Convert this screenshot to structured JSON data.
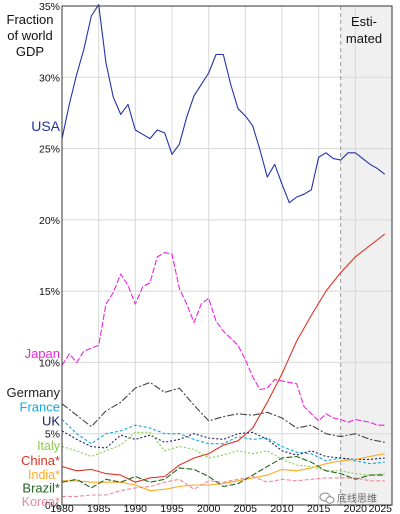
{
  "chart_data": {
    "type": "line",
    "title": "",
    "ylabel_lines": [
      "Fraction",
      "of world",
      "GDP"
    ],
    "ylim": [
      0,
      35
    ],
    "xlim": [
      1980,
      2025
    ],
    "x_ticks": [
      1980,
      1985,
      1990,
      1995,
      2000,
      2005,
      2010,
      2015,
      2020,
      2025
    ],
    "y_ticks": [
      0,
      5,
      10,
      15,
      20,
      25,
      30,
      35
    ],
    "y_tick_suffix": "%",
    "grid": true,
    "estimated_from": 2018,
    "estimated_label_lines": [
      "Esti-",
      "mated"
    ],
    "series": [
      {
        "name": "USA",
        "color": "#2233aa",
        "dash": "",
        "x": [
          1980,
          1981,
          1982,
          1983,
          1984,
          1985,
          1986,
          1987,
          1988,
          1989,
          1990,
          1991,
          1992,
          1993,
          1994,
          1995,
          1996,
          1997,
          1998,
          1999,
          2000,
          2001,
          2002,
          2003,
          2004,
          2005,
          2006,
          2007,
          2008,
          2009,
          2010,
          2011,
          2012,
          2013,
          2014,
          2015,
          2016,
          2017,
          2018,
          2019,
          2020,
          2021,
          2022,
          2023,
          2024
        ],
        "values": [
          25.7,
          28.1,
          30.2,
          32.0,
          34.3,
          35.1,
          31.0,
          28.6,
          27.4,
          28.1,
          26.3,
          26.0,
          25.7,
          26.3,
          26.1,
          24.6,
          25.3,
          27.2,
          28.7,
          29.5,
          30.3,
          31.6,
          31.6,
          29.5,
          27.8,
          27.3,
          26.6,
          24.9,
          23.0,
          23.9,
          22.5,
          21.2,
          21.6,
          21.8,
          22.1,
          24.4,
          24.7,
          24.3,
          24.2,
          24.7,
          24.7,
          24.3,
          23.9,
          23.6,
          23.2
        ]
      },
      {
        "name": "China*",
        "color": "#dd3322",
        "dash": "",
        "x": [
          1980,
          1982,
          1984,
          1986,
          1988,
          1990,
          1992,
          1994,
          1996,
          1998,
          2000,
          2002,
          2004,
          2006,
          2008,
          2010,
          2012,
          2014,
          2016,
          2018,
          2020,
          2022,
          2024
        ],
        "values": [
          2.7,
          2.4,
          2.5,
          2.2,
          2.1,
          1.6,
          1.9,
          2.0,
          2.8,
          3.3,
          3.6,
          4.2,
          4.5,
          5.4,
          7.2,
          9.2,
          11.5,
          13.3,
          15.0,
          16.3,
          17.4,
          18.2,
          19.0
        ]
      },
      {
        "name": "Japan",
        "color": "#ee22dd",
        "dash": "6,2",
        "x": [
          1980,
          1981,
          1982,
          1983,
          1984,
          1985,
          1986,
          1987,
          1988,
          1989,
          1990,
          1991,
          1992,
          1993,
          1994,
          1995,
          1996,
          1997,
          1998,
          1999,
          2000,
          2001,
          2002,
          2003,
          2004,
          2005,
          2006,
          2007,
          2008,
          2009,
          2010,
          2011,
          2012,
          2013,
          2014,
          2015,
          2016,
          2017,
          2018,
          2019,
          2020,
          2021,
          2022,
          2023,
          2024
        ],
        "values": [
          9.8,
          10.6,
          10.0,
          10.8,
          11.0,
          11.2,
          14.1,
          14.9,
          16.2,
          15.4,
          14.1,
          15.3,
          15.6,
          17.4,
          17.7,
          17.6,
          15.2,
          14.1,
          12.8,
          14.1,
          14.5,
          12.9,
          12.2,
          11.7,
          11.2,
          10.2,
          9.0,
          8.1,
          8.2,
          8.8,
          8.7,
          8.6,
          8.5,
          6.9,
          6.4,
          5.9,
          6.4,
          6.1,
          6.0,
          5.8,
          6.0,
          5.9,
          5.8,
          5.6,
          5.6
        ]
      },
      {
        "name": "Germany",
        "color": "#444444",
        "dash": "7,2,2,2",
        "x": [
          1980,
          1982,
          1984,
          1986,
          1988,
          1990,
          1992,
          1994,
          1996,
          1998,
          2000,
          2002,
          2004,
          2006,
          2008,
          2010,
          2012,
          2014,
          2016,
          2018,
          2020,
          2022,
          2024
        ],
        "values": [
          7.1,
          6.3,
          5.5,
          6.6,
          7.2,
          8.2,
          8.6,
          7.9,
          8.2,
          7.0,
          5.9,
          6.2,
          6.4,
          6.3,
          6.5,
          6.1,
          5.4,
          5.6,
          5.0,
          4.8,
          5.0,
          4.6,
          4.4
        ]
      },
      {
        "name": "France",
        "color": "#11aadd",
        "dash": "3,2",
        "x": [
          1980,
          1982,
          1984,
          1986,
          1988,
          1990,
          1992,
          1994,
          1996,
          1998,
          2000,
          2002,
          2004,
          2006,
          2008,
          2010,
          2012,
          2014,
          2016,
          2018,
          2020,
          2022,
          2024
        ],
        "values": [
          6.0,
          5.0,
          4.3,
          5.0,
          5.2,
          5.6,
          5.4,
          5.0,
          5.0,
          4.6,
          4.3,
          4.3,
          4.8,
          4.6,
          4.7,
          4.1,
          3.7,
          3.6,
          3.1,
          3.3,
          3.1,
          2.9,
          3.0
        ]
      },
      {
        "name": "UK",
        "color": "#222266",
        "dash": "2,2",
        "x": [
          1980,
          1982,
          1984,
          1986,
          1988,
          1990,
          1992,
          1994,
          1996,
          1998,
          2000,
          2002,
          2004,
          2006,
          2008,
          2010,
          2012,
          2014,
          2016,
          2018,
          2020,
          2022,
          2024
        ],
        "values": [
          5.2,
          4.6,
          4.1,
          4.0,
          4.9,
          4.6,
          4.9,
          4.4,
          4.6,
          5.0,
          4.7,
          4.6,
          5.0,
          5.1,
          4.6,
          3.8,
          3.5,
          3.8,
          3.4,
          3.3,
          3.2,
          3.2,
          3.3
        ]
      },
      {
        "name": "Italy",
        "color": "#88cc44",
        "dash": "2,2",
        "x": [
          1980,
          1982,
          1984,
          1986,
          1988,
          1990,
          1992,
          1994,
          1996,
          1998,
          2000,
          2002,
          2004,
          2006,
          2008,
          2010,
          2012,
          2014,
          2016,
          2018,
          2020,
          2022,
          2024
        ],
        "values": [
          4.1,
          3.8,
          3.4,
          3.8,
          4.2,
          5.1,
          5.1,
          3.8,
          4.1,
          3.9,
          3.3,
          3.5,
          3.8,
          3.6,
          3.8,
          3.2,
          2.8,
          2.7,
          2.4,
          2.4,
          2.2,
          2.1,
          2.2
        ]
      },
      {
        "name": "India*",
        "color": "#ffaa22",
        "dash": "",
        "x": [
          1980,
          1982,
          1984,
          1986,
          1988,
          1990,
          1992,
          1994,
          1996,
          1998,
          2000,
          2002,
          2004,
          2006,
          2008,
          2010,
          2012,
          2014,
          2016,
          2018,
          2020,
          2022,
          2024
        ],
        "values": [
          1.7,
          1.7,
          1.6,
          1.6,
          1.6,
          1.4,
          1.0,
          1.1,
          1.3,
          1.4,
          1.4,
          1.5,
          1.7,
          1.9,
          2.1,
          2.5,
          2.4,
          2.6,
          2.9,
          3.1,
          3.2,
          3.4,
          3.6
        ]
      },
      {
        "name": "Brazil*",
        "color": "#226622",
        "dash": "6,2",
        "x": [
          1980,
          1982,
          1984,
          1986,
          1988,
          1990,
          1992,
          1994,
          1996,
          1998,
          2000,
          2002,
          2004,
          2006,
          2008,
          2010,
          2012,
          2014,
          2016,
          2018,
          2020,
          2022,
          2024
        ],
        "values": [
          1.6,
          1.8,
          1.2,
          1.8,
          1.6,
          2.0,
          1.6,
          1.8,
          2.6,
          2.5,
          2.0,
          1.3,
          1.5,
          2.1,
          2.7,
          3.3,
          3.4,
          3.0,
          2.4,
          2.2,
          1.8,
          2.1,
          2.1
        ]
      },
      {
        "name": "Korea*",
        "color": "#ee8899",
        "dash": "4,2",
        "x": [
          1980,
          1982,
          1984,
          1986,
          1988,
          1990,
          1992,
          1994,
          1996,
          1998,
          2000,
          2002,
          2004,
          2006,
          2008,
          2010,
          2012,
          2014,
          2016,
          2018,
          2020,
          2022,
          2024
        ],
        "values": [
          0.6,
          0.6,
          0.7,
          0.7,
          1.0,
          1.2,
          1.3,
          1.6,
          1.8,
          1.1,
          1.7,
          1.6,
          1.8,
          2.0,
          1.6,
          1.8,
          1.7,
          1.8,
          1.9,
          1.9,
          1.9,
          1.7,
          1.7
        ]
      }
    ],
    "labels": [
      {
        "key": "USA",
        "text": "USA",
        "color": "#2233aa",
        "size": "big",
        "y": 26.5
      },
      {
        "key": "Japan",
        "text": "Japan",
        "color": "#ee22dd",
        "size": "mid",
        "y": 10.6
      },
      {
        "key": "Germany",
        "text": "Germany",
        "color": "#222222",
        "size": "mid",
        "y": 7.85
      },
      {
        "key": "France",
        "text": "France",
        "color": "#11aadd",
        "size": "mid",
        "y": 6.85
      },
      {
        "key": "UK",
        "text": "UK",
        "color": "#222266",
        "size": "mid",
        "y": 5.85
      },
      {
        "key": "Italy",
        "text": "Italy",
        "color": "#88cc44",
        "size": "small",
        "y": 4.15
      },
      {
        "key": "China",
        "text": "China*",
        "color": "#dd3322",
        "size": "mid",
        "y": 3.1
      },
      {
        "key": "India",
        "text": "India*",
        "color": "#ffaa22",
        "size": "small",
        "y": 2.1
      },
      {
        "key": "Brazil",
        "text": "Brazil*",
        "color": "#226622",
        "size": "mid",
        "y": 1.15
      },
      {
        "key": "Korea",
        "text": "Korea*",
        "color": "#ee8899",
        "size": "small",
        "y": 0.2
      }
    ]
  },
  "watermark": {
    "text": "底线思维",
    "icon": "wechat-icon"
  }
}
